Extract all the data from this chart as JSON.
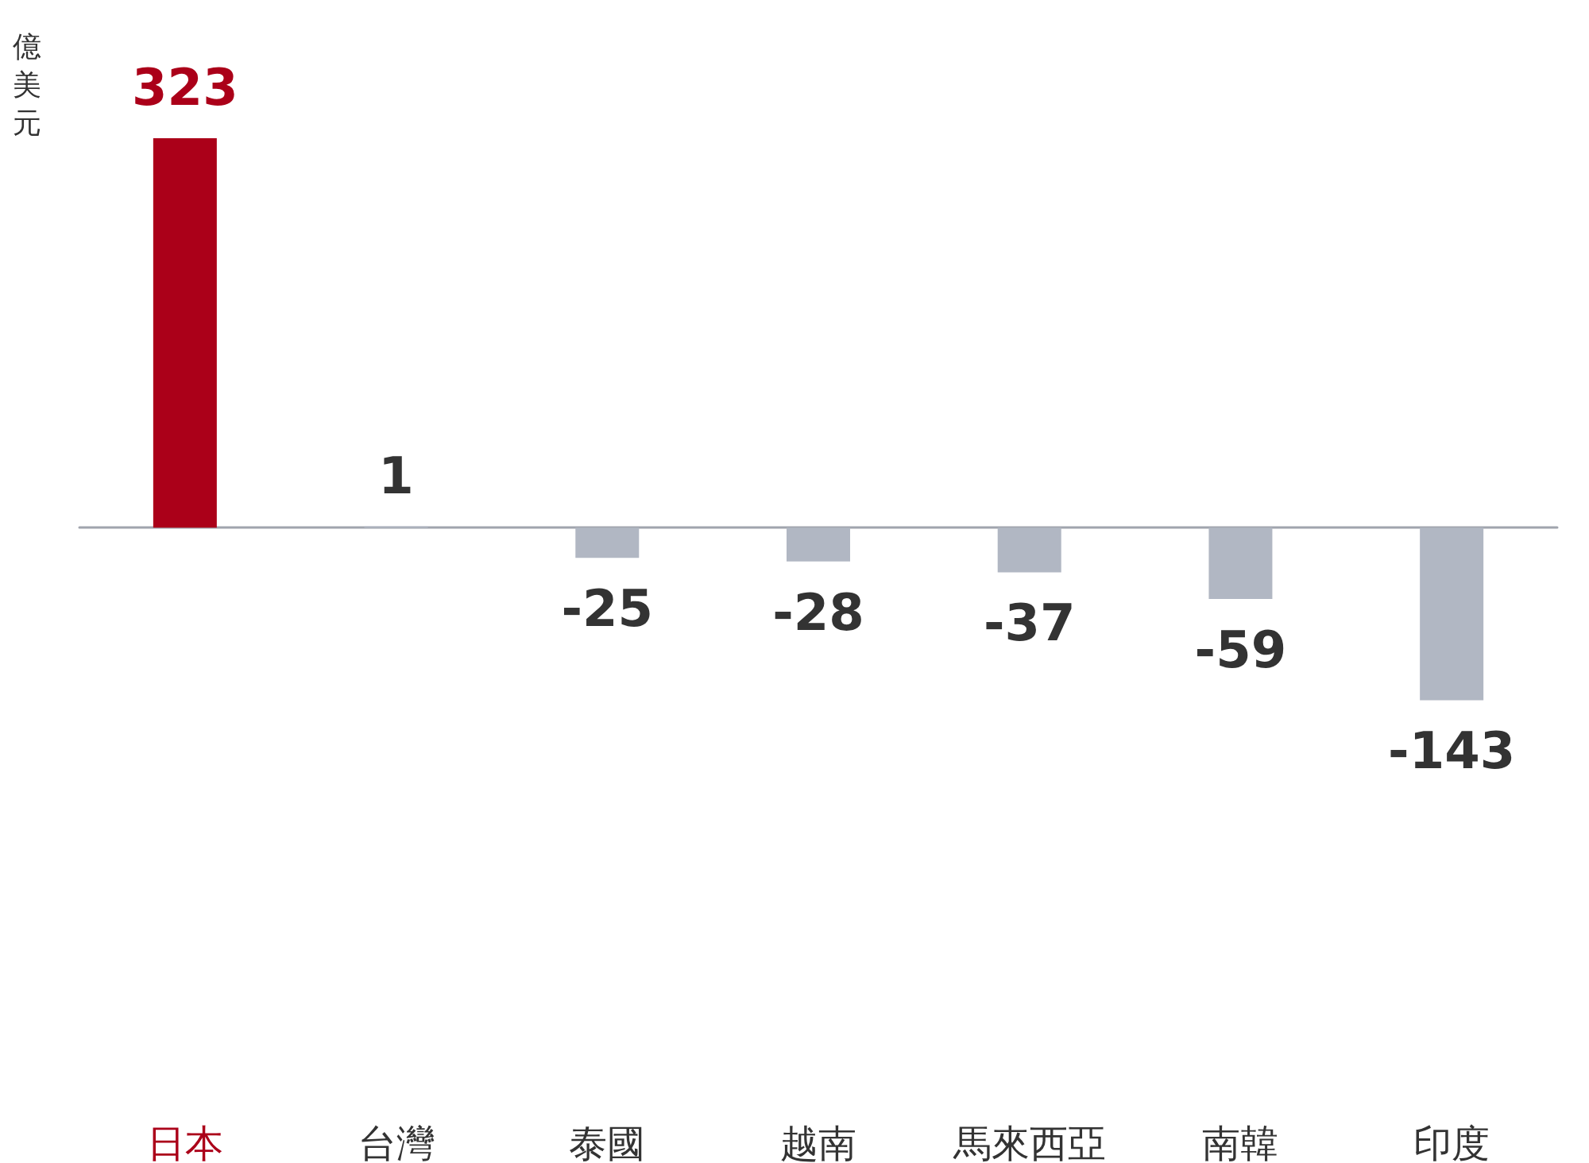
{
  "chart_data": {
    "type": "bar",
    "ylabel": "億美元",
    "categories": [
      "日本",
      "台灣",
      "泰國",
      "越南",
      "馬來西亞",
      "南韓",
      "印度"
    ],
    "values": [
      323,
      1,
      -25,
      -28,
      -37,
      -59,
      -143
    ],
    "colors": [
      "#ab0019",
      "#b1b7c3",
      "#b1b7c3",
      "#b1b7c3",
      "#b1b7c3",
      "#b1b7c3",
      "#b1b7c3"
    ],
    "data_labels": true,
    "grid": false
  }
}
